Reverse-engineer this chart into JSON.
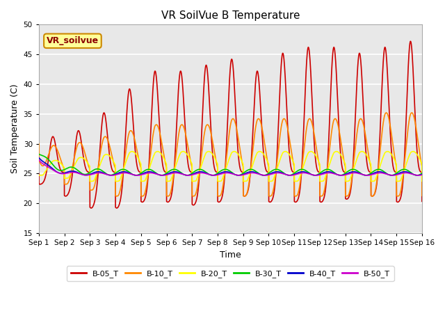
{
  "title": "VR SoilVue B Temperature",
  "ylabel": "Soil Temperature (C)",
  "xlabel": "Time",
  "ylim": [
    15,
    50
  ],
  "series_names": [
    "B-05_T",
    "B-10_T",
    "B-20_T",
    "B-30_T",
    "B-40_T",
    "B-50_T"
  ],
  "series_colors": [
    "#cc0000",
    "#ff8800",
    "#ffff00",
    "#00cc00",
    "#0000cc",
    "#cc00cc"
  ],
  "background_color": "#e8e8e8",
  "figsize": [
    6.4,
    4.8
  ],
  "dpi": 100,
  "xtick_labels": [
    "Sep 1",
    "Sep 2",
    "Sep 3",
    "Sep 4",
    "Sep 5",
    "Sep 6",
    "Sep 7",
    "Sep 8",
    "Sep 9",
    "Sep 10",
    "Sep 11",
    "Sep 12",
    "Sep 13",
    "Sep 14",
    "Sep 15",
    "Sep 16"
  ],
  "ytick_values": [
    15,
    20,
    25,
    30,
    35,
    40,
    45,
    50
  ],
  "legend_box_label": "VR_soilvue",
  "legend_box_color": "#ffff99",
  "legend_box_border": "#cc8800",
  "base_temp": 25.2
}
